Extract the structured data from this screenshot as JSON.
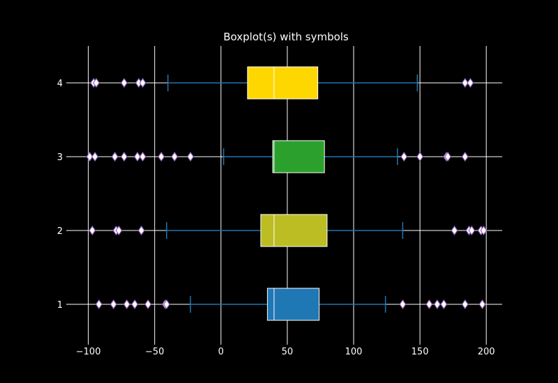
{
  "chart_data": {
    "type": "boxplot",
    "orientation": "horizontal",
    "title": "Boxplot(s) with symbols",
    "xlabel": "",
    "ylabel": "",
    "xlim": [
      -114,
      212
    ],
    "x_ticks": [
      -100,
      -50,
      0,
      50,
      100,
      150,
      200
    ],
    "x_tick_labels": [
      "−100",
      "−50",
      "0",
      "50",
      "100",
      "150",
      "200"
    ],
    "grid": true,
    "colors": {
      "background": "#000000",
      "grid": "#ffffff",
      "whisker": "#1f77b4",
      "median": "#ffffff",
      "flier_fill": "#ffffff",
      "flier_edge": "#9467bd"
    },
    "series": [
      {
        "label": "1",
        "position": 1,
        "color": "#1f77b4",
        "whisker_low": -23,
        "q1": 35,
        "median": 40,
        "q3": 74,
        "whisker_high": 124,
        "fliers": [
          -92,
          -81,
          -71,
          -65,
          -55,
          -42,
          -41,
          137,
          157,
          163,
          168,
          184,
          197
        ]
      },
      {
        "label": "2",
        "position": 2,
        "color": "#bcbd22",
        "whisker_low": -41,
        "q1": 30,
        "median": 40,
        "q3": 80,
        "whisker_high": 137,
        "fliers": [
          -97,
          -79,
          -77,
          -60,
          176,
          187,
          189,
          196,
          198
        ]
      },
      {
        "label": "3",
        "position": 3,
        "color": "#2ca02c",
        "whisker_low": 2,
        "q1": 39,
        "median": 40,
        "q3": 78,
        "whisker_high": 133,
        "fliers": [
          -99,
          -95,
          -80,
          -73,
          -63,
          -59,
          -45,
          -35,
          -23,
          138,
          150,
          170,
          171,
          184
        ]
      },
      {
        "label": "4",
        "position": 4,
        "color": "#ffd700",
        "whisker_low": -40,
        "q1": 20,
        "median": 40,
        "q3": 73,
        "whisker_high": 148,
        "fliers": [
          -96,
          -94,
          -73,
          -62,
          -59,
          184,
          188
        ]
      }
    ]
  }
}
